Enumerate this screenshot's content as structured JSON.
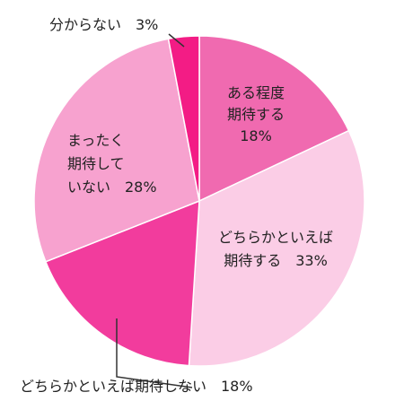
{
  "chart_data": {
    "type": "pie",
    "colors": [
      "#F06AB0",
      "#FBCDE6",
      "#F23C9D",
      "#F7A2CF",
      "#F31C85"
    ],
    "slices": [
      {
        "label_lines": [
          "ある程度",
          "期待する",
          "18%"
        ],
        "value": 18
      },
      {
        "label_lines": [
          "どちらかといえば",
          "期待する　33%"
        ],
        "value": 33
      },
      {
        "label_lines": [
          "どちらかといえば期待しない　18%"
        ],
        "value": 18
      },
      {
        "label_lines": [
          "まったく",
          "期待して",
          "いない　28%"
        ],
        "value": 28
      },
      {
        "label_lines": [
          "分からない　3%"
        ],
        "value": 3
      }
    ]
  }
}
